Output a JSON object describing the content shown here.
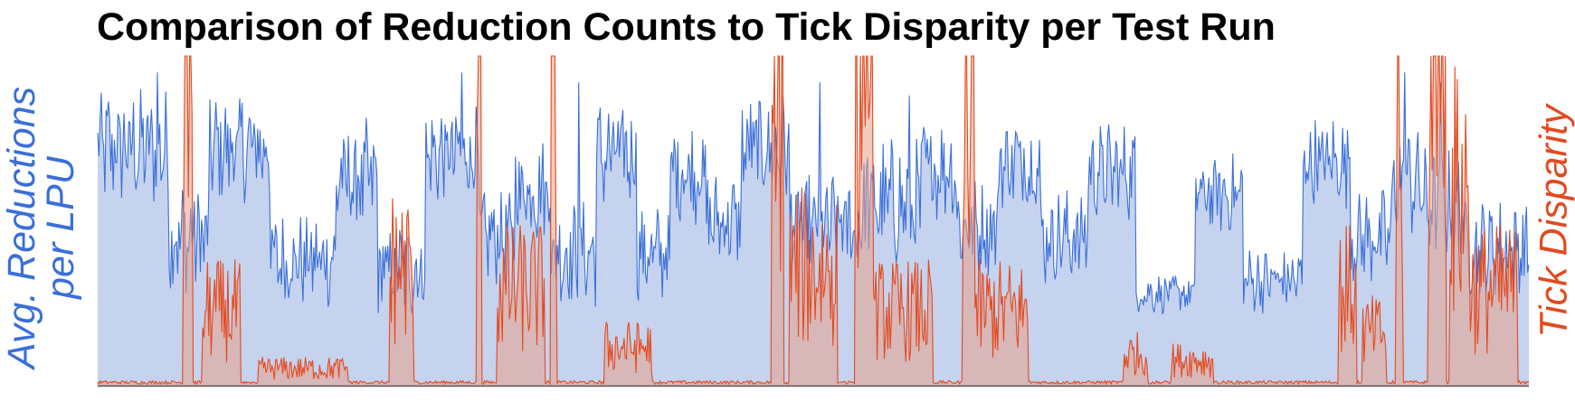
{
  "chart_data": {
    "type": "area",
    "title": "Comparison of Reduction Counts to Tick Disparity per Test Run",
    "ylabel_left": "Avg. Reductions per LPU",
    "ylabel_right": "Tick Disparity",
    "xlabel": "",
    "grid": false,
    "legend": "none",
    "colors": {
      "left_series_line": "#3a6fd8",
      "left_series_fill": "#c5d3ef",
      "right_series_line": "#e24a1f",
      "right_series_fill": "#e8a08a"
    },
    "ylim_left": [
      0,
      1
    ],
    "ylim_right": [
      0,
      1
    ],
    "series": [
      {
        "axis": "left",
        "segments": [
          {
            "start": 0,
            "end": 60,
            "level": 0.72,
            "amp": 0.15
          },
          {
            "start": 60,
            "end": 94,
            "level": 0.45,
            "amp": 0.15
          },
          {
            "start": 94,
            "end": 145,
            "level": 0.72,
            "amp": 0.14
          },
          {
            "start": 145,
            "end": 200,
            "level": 0.38,
            "amp": 0.12
          },
          {
            "start": 200,
            "end": 235,
            "level": 0.62,
            "amp": 0.15
          },
          {
            "start": 235,
            "end": 275,
            "level": 0.35,
            "amp": 0.12
          },
          {
            "start": 275,
            "end": 320,
            "level": 0.7,
            "amp": 0.13
          },
          {
            "start": 320,
            "end": 350,
            "level": 0.45,
            "amp": 0.12
          },
          {
            "start": 350,
            "end": 380,
            "level": 0.6,
            "amp": 0.14
          },
          {
            "start": 380,
            "end": 418,
            "level": 0.4,
            "amp": 0.13
          },
          {
            "start": 418,
            "end": 452,
            "level": 0.7,
            "amp": 0.14
          },
          {
            "start": 452,
            "end": 480,
            "level": 0.4,
            "amp": 0.12
          },
          {
            "start": 480,
            "end": 510,
            "level": 0.65,
            "amp": 0.13
          },
          {
            "start": 510,
            "end": 540,
            "level": 0.5,
            "amp": 0.12
          },
          {
            "start": 540,
            "end": 580,
            "level": 0.72,
            "amp": 0.14
          },
          {
            "start": 580,
            "end": 640,
            "level": 0.48,
            "amp": 0.14
          },
          {
            "start": 640,
            "end": 690,
            "level": 0.55,
            "amp": 0.16
          },
          {
            "start": 690,
            "end": 720,
            "level": 0.66,
            "amp": 0.13
          },
          {
            "start": 720,
            "end": 755,
            "level": 0.48,
            "amp": 0.12
          },
          {
            "start": 755,
            "end": 790,
            "level": 0.68,
            "amp": 0.13
          },
          {
            "start": 790,
            "end": 830,
            "level": 0.45,
            "amp": 0.12
          },
          {
            "start": 830,
            "end": 870,
            "level": 0.65,
            "amp": 0.12
          },
          {
            "start": 870,
            "end": 920,
            "level": 0.28,
            "amp": 0.05
          },
          {
            "start": 920,
            "end": 960,
            "level": 0.58,
            "amp": 0.1
          },
          {
            "start": 960,
            "end": 1010,
            "level": 0.32,
            "amp": 0.08
          },
          {
            "start": 1010,
            "end": 1050,
            "level": 0.68,
            "amp": 0.12
          },
          {
            "start": 1050,
            "end": 1085,
            "level": 0.45,
            "amp": 0.12
          },
          {
            "start": 1085,
            "end": 1110,
            "level": 0.62,
            "amp": 0.14
          },
          {
            "start": 1110,
            "end": 1145,
            "level": 0.55,
            "amp": 0.14
          },
          {
            "start": 1145,
            "end": 1200,
            "level": 0.42,
            "amp": 0.12
          }
        ],
        "spikes": [
          {
            "at": 50,
            "value": 0.95
          },
          {
            "at": 305,
            "value": 0.95
          },
          {
            "at": 403,
            "value": 0.92
          },
          {
            "at": 605,
            "value": 0.92
          },
          {
            "at": 680,
            "value": 0.88
          },
          {
            "at": 1095,
            "value": 0.95
          },
          {
            "at": 1125,
            "value": 0.92
          }
        ]
      },
      {
        "axis": "right",
        "base": 0.01,
        "bursts": [
          {
            "start": 72,
            "end": 80,
            "level": 0.98
          },
          {
            "start": 88,
            "end": 120,
            "level": 0.35
          },
          {
            "start": 135,
            "end": 210,
            "level": 0.08
          },
          {
            "start": 245,
            "end": 265,
            "level": 0.55
          },
          {
            "start": 318,
            "end": 322,
            "level": 0.98
          },
          {
            "start": 335,
            "end": 375,
            "level": 0.45
          },
          {
            "start": 380,
            "end": 385,
            "level": 0.98
          },
          {
            "start": 425,
            "end": 465,
            "level": 0.18
          },
          {
            "start": 565,
            "end": 575,
            "level": 0.98
          },
          {
            "start": 580,
            "end": 620,
            "level": 0.55
          },
          {
            "start": 635,
            "end": 650,
            "level": 0.98
          },
          {
            "start": 650,
            "end": 700,
            "level": 0.35
          },
          {
            "start": 725,
            "end": 735,
            "level": 0.98
          },
          {
            "start": 735,
            "end": 780,
            "level": 0.35
          },
          {
            "start": 860,
            "end": 880,
            "level": 0.15
          },
          {
            "start": 900,
            "end": 935,
            "level": 0.12
          },
          {
            "start": 1040,
            "end": 1055,
            "level": 0.45
          },
          {
            "start": 1060,
            "end": 1080,
            "level": 0.25
          },
          {
            "start": 1088,
            "end": 1094,
            "level": 0.98
          },
          {
            "start": 1115,
            "end": 1130,
            "level": 0.98
          },
          {
            "start": 1133,
            "end": 1150,
            "level": 0.9
          },
          {
            "start": 1150,
            "end": 1190,
            "level": 0.45
          }
        ]
      }
    ],
    "x_count": 1200
  }
}
